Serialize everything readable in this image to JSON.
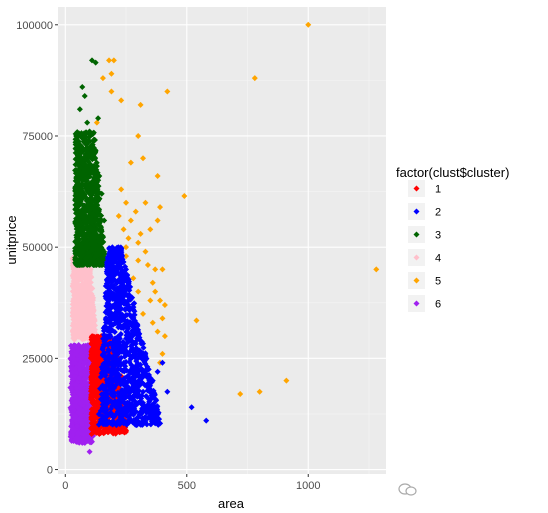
{
  "chart_data": {
    "type": "scatter",
    "xlabel": "area",
    "ylabel": "unitprice",
    "xlim": [
      -30,
      1320
    ],
    "ylim": [
      -1000,
      104000
    ],
    "x_ticks": [
      0,
      500,
      1000
    ],
    "y_ticks": [
      0,
      25000,
      50000,
      75000,
      100000
    ],
    "y_tick_labels": [
      "0",
      "25000",
      "50000",
      "75000",
      "100000"
    ],
    "x_tick_labels": [
      "0",
      "500",
      "1000"
    ],
    "grid": true,
    "legend": {
      "title": "factor(clust$cluster)",
      "placement": "right"
    },
    "series": [
      {
        "name": "1",
        "color": "#FF0000",
        "region": {
          "x": [
            100,
            260
          ],
          "y": [
            8000,
            30000
          ]
        },
        "points": [
          [
            240,
            13000
          ],
          [
            255,
            15000
          ],
          [
            250,
            17000
          ],
          [
            230,
            21000
          ],
          [
            260,
            14000
          ],
          [
            235,
            12000
          ],
          [
            220,
            25000
          ],
          [
            180,
            28000
          ],
          [
            150,
            30000
          ],
          [
            140,
            8000
          ],
          [
            200,
            9500
          ]
        ]
      },
      {
        "name": "2",
        "color": "#0000FF",
        "region": {
          "x": [
            130,
            420
          ],
          "y": [
            10000,
            50000
          ]
        },
        "points": [
          [
            200,
            49000
          ],
          [
            380,
            22000
          ],
          [
            420,
            17500
          ],
          [
            350,
            18000
          ],
          [
            330,
            22000
          ],
          [
            300,
            30000
          ],
          [
            280,
            36000
          ],
          [
            260,
            42000
          ],
          [
            250,
            45000
          ],
          [
            520,
            14000
          ],
          [
            580,
            11000
          ],
          [
            300,
            15000
          ],
          [
            340,
            13000
          ],
          [
            280,
            13000
          ],
          [
            360,
            20000
          ],
          [
            400,
            24000
          ],
          [
            310,
            26000
          ],
          [
            240,
            40000
          ],
          [
            230,
            47000
          ]
        ]
      },
      {
        "name": "3",
        "color": "#006400",
        "region": {
          "x": [
            40,
            170
          ],
          "y": [
            46000,
            77000
          ]
        },
        "points": [
          [
            70,
            86000
          ],
          [
            80,
            84000
          ],
          [
            60,
            81000
          ],
          [
            90,
            78000
          ],
          [
            100,
            76000
          ],
          [
            75,
            72000
          ],
          [
            95,
            70000
          ],
          [
            120,
            74000
          ],
          [
            135,
            79000
          ],
          [
            110,
            92000
          ],
          [
            125,
            91500
          ],
          [
            60,
            68000
          ],
          [
            140,
            66000
          ],
          [
            150,
            62000
          ],
          [
            130,
            58000
          ],
          [
            160,
            56000
          ],
          [
            50,
            60000
          ],
          [
            45,
            55000
          ]
        ]
      },
      {
        "name": "4",
        "color": "#FFC0CB",
        "region": {
          "x": [
            30,
            140
          ],
          "y": [
            29000,
            48000
          ]
        },
        "points": [
          [
            40,
            47000
          ],
          [
            55,
            48000
          ],
          [
            130,
            46000
          ]
        ]
      },
      {
        "name": "5",
        "color": "#FFA500",
        "points": [
          [
            1000,
            100000
          ],
          [
            780,
            88000
          ],
          [
            180,
            92000
          ],
          [
            200,
            92000
          ],
          [
            190,
            89000
          ],
          [
            155,
            88000
          ],
          [
            130,
            78000
          ],
          [
            190,
            85000
          ],
          [
            230,
            83000
          ],
          [
            310,
            82000
          ],
          [
            300,
            75000
          ],
          [
            320,
            70000
          ],
          [
            270,
            69000
          ],
          [
            380,
            66000
          ],
          [
            420,
            85000
          ],
          [
            390,
            59000
          ],
          [
            490,
            61500
          ],
          [
            380,
            56000
          ],
          [
            300,
            51000
          ],
          [
            350,
            54000
          ],
          [
            330,
            49000
          ],
          [
            400,
            45000
          ],
          [
            370,
            45000
          ],
          [
            300,
            47000
          ],
          [
            260,
            52000
          ],
          [
            270,
            56000
          ],
          [
            250,
            60000
          ],
          [
            230,
            63000
          ],
          [
            220,
            57000
          ],
          [
            290,
            58000
          ],
          [
            310,
            53000
          ],
          [
            340,
            46000
          ],
          [
            250,
            48000
          ],
          [
            360,
            42000
          ],
          [
            370,
            40000
          ],
          [
            390,
            38000
          ],
          [
            410,
            37000
          ],
          [
            400,
            34000
          ],
          [
            380,
            31000
          ],
          [
            360,
            33000
          ],
          [
            410,
            30000
          ],
          [
            400,
            26000
          ],
          [
            390,
            24000
          ],
          [
            540,
            33500
          ],
          [
            1280,
            45000
          ],
          [
            910,
            20000
          ],
          [
            720,
            17000
          ],
          [
            800,
            17500
          ],
          [
            250,
            50000
          ],
          [
            240,
            54000
          ],
          [
            330,
            60000
          ],
          [
            280,
            43000
          ],
          [
            350,
            38000
          ],
          [
            320,
            35000
          ],
          [
            300,
            40000
          ]
        ]
      },
      {
        "name": "6",
        "color": "#A020F0",
        "region": {
          "x": [
            25,
            110
          ],
          "y": [
            6000,
            28000
          ]
        },
        "points": [
          [
            100,
            4000
          ],
          [
            70,
            6000
          ],
          [
            55,
            28000
          ],
          [
            40,
            26000
          ]
        ]
      }
    ]
  }
}
